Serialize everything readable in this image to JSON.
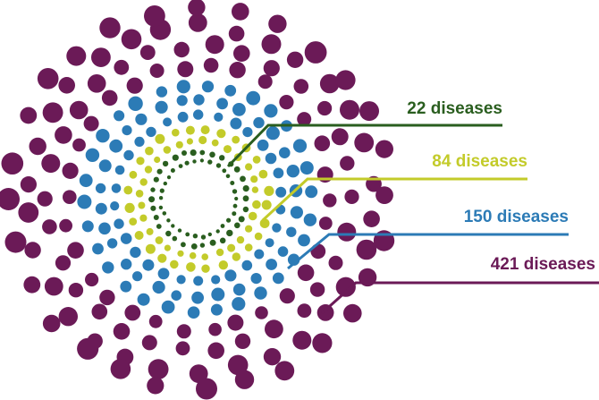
{
  "chart_data": {
    "type": "radial-dot-burst",
    "rings": [
      {
        "label": "22 diseases",
        "value": 22,
        "color": "#2a5e1f"
      },
      {
        "label": "84 diseases",
        "value": 84,
        "color": "#c3cb2a"
      },
      {
        "label": "150 diseases",
        "value": 150,
        "color": "#2c7bb6"
      },
      {
        "label": "421 diseases",
        "value": 421,
        "color": "#6b1a57"
      }
    ]
  }
}
